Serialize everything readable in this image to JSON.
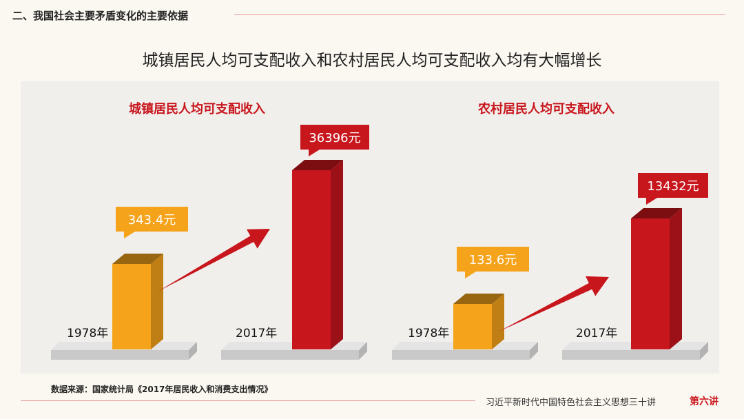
{
  "header": {
    "section_title": "二、我国社会主要矛盾变化的主要依据",
    "main_title": "城镇居民人均可支配收入和农村居民人均可支配收入均有大幅增长"
  },
  "footer": {
    "source": "数据来源：国家统计局《2017年居民收入和消费支出情况》",
    "series_name": "习近平新时代中国特色社会主义思想三十讲",
    "lecture": "第六讲"
  },
  "colors": {
    "accent_red": "#c8161d",
    "bar_1978": "#f5a31a",
    "bar_2017": "#c8161d",
    "background": "#fbf8f1",
    "panel": "#f1efec"
  },
  "chart_data": [
    {
      "type": "bar",
      "title": "城镇居民人均可支配收入",
      "categories": [
        "1978年",
        "2017年"
      ],
      "values": [
        343.4,
        36396
      ],
      "value_labels": [
        "343.4元",
        "36396元"
      ],
      "unit": "元",
      "style": "3d-columns-with-growth-arrow",
      "axes_shown": false,
      "grid": false
    },
    {
      "type": "bar",
      "title": "农村居民人均可支配收入",
      "categories": [
        "1978年",
        "2017年"
      ],
      "values": [
        133.6,
        13432
      ],
      "value_labels": [
        "133.6元",
        "13432元"
      ],
      "unit": "元",
      "style": "3d-columns-with-growth-arrow",
      "axes_shown": false,
      "grid": false
    }
  ]
}
